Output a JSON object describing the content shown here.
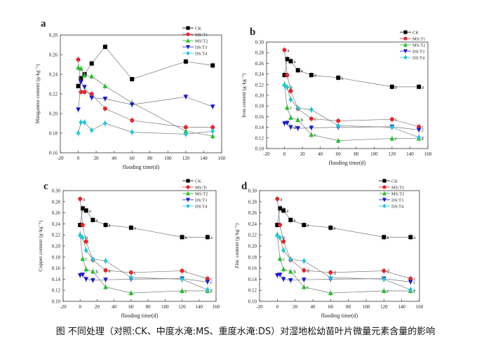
{
  "figure_caption": "图 不同处理（对照:CK、中度水淹:MS、重度水淹:DS）对湿地松幼苗叶片微量元素含量的影响",
  "colors": {
    "CK": "#000000",
    "MS:T1": "#e8242a",
    "MS:T2": "#22c02a",
    "DS:T3": "#1a1ad0",
    "DS:T4": "#1ec8d8"
  },
  "chart_data": [
    {
      "panel": "a",
      "type": "line",
      "xlabel": "flooding time(d)",
      "ylabel": "Manganese content (g·kg⁻¹)",
      "xlim": [
        -20,
        160
      ],
      "ylim": [
        0.16,
        0.28
      ],
      "xticks": [
        "-20",
        "0",
        "20",
        "40",
        "60",
        "80",
        "100",
        "120",
        "140",
        "160"
      ],
      "yticks": [
        "0.16",
        "0.18",
        "0.20",
        "0.22",
        "0.24",
        "0.26",
        "0.28"
      ],
      "x": [
        0,
        3,
        7,
        15,
        30,
        60,
        120,
        150
      ],
      "legend": [
        "CK",
        "MS:T1",
        "MS:T2",
        "DS:T3",
        "DS:T4"
      ],
      "series": [
        {
          "name": "CK",
          "values": [
            0.228,
            0.236,
            0.24,
            0.251,
            0.268,
            0.235,
            0.253,
            0.249
          ]
        },
        {
          "name": "MS:T1",
          "values": [
            0.255,
            0.222,
            0.222,
            0.22,
            0.205,
            0.193,
            0.186,
            0.186
          ]
        },
        {
          "name": "MS:T2",
          "values": [
            0.247,
            0.246,
            0.239,
            0.238,
            0.228,
            0.211,
            0.182,
            0.177
          ]
        },
        {
          "name": "DS:T3",
          "values": [
            0.204,
            0.232,
            0.227,
            0.216,
            0.215,
            0.209,
            0.217,
            0.207
          ]
        },
        {
          "name": "DS:T4",
          "values": [
            0.18,
            0.191,
            0.191,
            0.183,
            0.19,
            0.181,
            0.179,
            0.182
          ]
        }
      ]
    },
    {
      "panel": "b",
      "type": "line",
      "xlabel": "flooding time(d)",
      "ylabel": "Iron content (g·kg⁻¹)",
      "xlim": [
        -20,
        160
      ],
      "ylim": [
        0.1,
        0.3
      ],
      "xticks": [
        "-20",
        "0",
        "20",
        "40",
        "60",
        "80",
        "100",
        "120",
        "140",
        "160"
      ],
      "yticks": [
        "0.10",
        "0.12",
        "0.14",
        "0.16",
        "0.18",
        "0.20",
        "0.22",
        "0.24",
        "0.26",
        "0.28",
        "0.30"
      ],
      "x": [
        0,
        3,
        7,
        15,
        30,
        60,
        120,
        150
      ],
      "legend": [
        "CK",
        "MS:T1",
        "MS:T2",
        "DS:T3",
        "DS:T4"
      ],
      "series": [
        {
          "name": "CK",
          "values": [
            0.238,
            0.268,
            0.264,
            0.247,
            0.238,
            0.233,
            0.216,
            0.216
          ],
          "labels": [
            "",
            "a",
            "a",
            "a",
            "a",
            "a",
            "a",
            "a"
          ]
        },
        {
          "name": "MS:T1",
          "values": [
            0.285,
            0.238,
            0.208,
            0.175,
            0.156,
            0.152,
            0.155,
            0.141
          ],
          "labels": [
            "a",
            "",
            "",
            "",
            "c",
            "",
            "c",
            "c"
          ]
        },
        {
          "name": "MS:T2",
          "values": [
            0.221,
            0.177,
            0.158,
            0.154,
            0.126,
            0.115,
            0.119,
            0.119
          ],
          "labels": [
            "",
            "c",
            "",
            "b",
            "c",
            "",
            "c",
            "c"
          ]
        },
        {
          "name": "DS:T3",
          "values": [
            0.147,
            0.148,
            0.14,
            0.138,
            0.139,
            0.14,
            0.141,
            0.135
          ],
          "labels": [
            "",
            "",
            "d",
            "",
            "",
            "",
            "",
            "c"
          ]
        },
        {
          "name": "DS:T4",
          "values": [
            0.219,
            0.215,
            0.192,
            0.176,
            0.173,
            0.143,
            0.14,
            0.121
          ],
          "labels": [
            "",
            "b",
            "",
            "",
            "",
            "",
            "",
            "c"
          ]
        }
      ]
    },
    {
      "panel": "c",
      "type": "line",
      "xlabel": "flooding time(d)",
      "ylabel": "Copper content (g·kg⁻¹)",
      "xlim": [
        -20,
        160
      ],
      "ylim": [
        0.1,
        0.3
      ],
      "xticks": [
        "-20",
        "0",
        "20",
        "40",
        "60",
        "80",
        "100",
        "120",
        "140",
        "160"
      ],
      "yticks": [
        "0.10",
        "0.12",
        "0.14",
        "0.16",
        "0.18",
        "0.20",
        "0.22",
        "0.24",
        "0.26",
        "0.28",
        "0.30"
      ],
      "x": [
        0,
        3,
        7,
        15,
        30,
        60,
        120,
        150
      ],
      "legend": [
        "CK",
        "MS:Ti",
        "MS:T2",
        "DS:T3",
        "DS:T4"
      ],
      "series": [
        {
          "name": "CK",
          "values": [
            0.238,
            0.268,
            0.264,
            0.247,
            0.238,
            0.233,
            0.216,
            0.216
          ],
          "labels": [
            "",
            "a",
            "a",
            "a",
            "a",
            "a",
            "a",
            "a"
          ]
        },
        {
          "name": "MS:T1",
          "values": [
            0.285,
            0.238,
            0.208,
            0.175,
            0.156,
            0.152,
            0.155,
            0.141
          ],
          "labels": [
            "a",
            "",
            "",
            "",
            "a",
            "c",
            "c",
            "c"
          ]
        },
        {
          "name": "MS:T2",
          "values": [
            0.221,
            0.177,
            0.158,
            0.154,
            0.126,
            0.115,
            0.119,
            0.119
          ],
          "labels": [
            "",
            "c",
            "",
            "b",
            "",
            "",
            "c",
            "c"
          ]
        },
        {
          "name": "DS:T3",
          "values": [
            0.147,
            0.148,
            0.14,
            0.138,
            0.139,
            0.14,
            0.141,
            0.135
          ],
          "labels": [
            "",
            "",
            "",
            "",
            "",
            "",
            "",
            "c"
          ]
        },
        {
          "name": "DS:T4",
          "values": [
            0.219,
            0.215,
            0.192,
            0.176,
            0.173,
            0.143,
            0.14,
            0.121
          ],
          "labels": [
            "",
            "b",
            "",
            "",
            "",
            "",
            "",
            "c"
          ]
        }
      ]
    },
    {
      "panel": "d",
      "type": "line",
      "xlabel": "flooding time(d)",
      "ylabel": "Zinc content (g·kg⁻¹)",
      "xlim": [
        -20,
        160
      ],
      "ylim": [
        0.1,
        0.3
      ],
      "xticks": [
        "-20",
        "0",
        "20",
        "40",
        "60",
        "80",
        "100",
        "120",
        "140",
        "160"
      ],
      "yticks": [
        "0.10",
        "0.12",
        "0.14",
        "0.16",
        "0.18",
        "0.20",
        "0.22",
        "0.24",
        "0.26",
        "0.28",
        "0.30"
      ],
      "x": [
        0,
        3,
        7,
        15,
        30,
        60,
        120,
        150
      ],
      "legend": [
        "CK",
        "MS:T1",
        "MS:T2",
        "DS:T3",
        "DS:T4"
      ],
      "series": [
        {
          "name": "CK",
          "values": [
            0.238,
            0.268,
            0.264,
            0.247,
            0.238,
            0.233,
            0.216,
            0.216
          ],
          "labels": [
            "",
            "a",
            "a",
            "a",
            "a",
            "a",
            "a",
            "a"
          ]
        },
        {
          "name": "MS:T1",
          "values": [
            0.285,
            0.238,
            0.208,
            0.175,
            0.156,
            0.152,
            0.155,
            0.141
          ],
          "labels": [
            "a",
            "",
            "",
            "",
            "d",
            "d",
            "d",
            "c"
          ]
        },
        {
          "name": "MS:T2",
          "values": [
            0.221,
            0.177,
            0.158,
            0.154,
            0.126,
            0.115,
            0.119,
            0.119
          ],
          "labels": [
            "",
            "c",
            "",
            "b",
            "c",
            "",
            "c",
            "c"
          ]
        },
        {
          "name": "DS:T3",
          "values": [
            0.147,
            0.148,
            0.14,
            0.138,
            0.139,
            0.14,
            0.141,
            0.135
          ],
          "labels": [
            "",
            "",
            "",
            "",
            "",
            "",
            "",
            "c"
          ]
        },
        {
          "name": "DS:T4",
          "values": [
            0.219,
            0.215,
            0.192,
            0.176,
            0.173,
            0.143,
            0.14,
            0.121
          ],
          "labels": [
            "",
            "b",
            "",
            "",
            "",
            "",
            "",
            "c"
          ]
        }
      ]
    }
  ]
}
